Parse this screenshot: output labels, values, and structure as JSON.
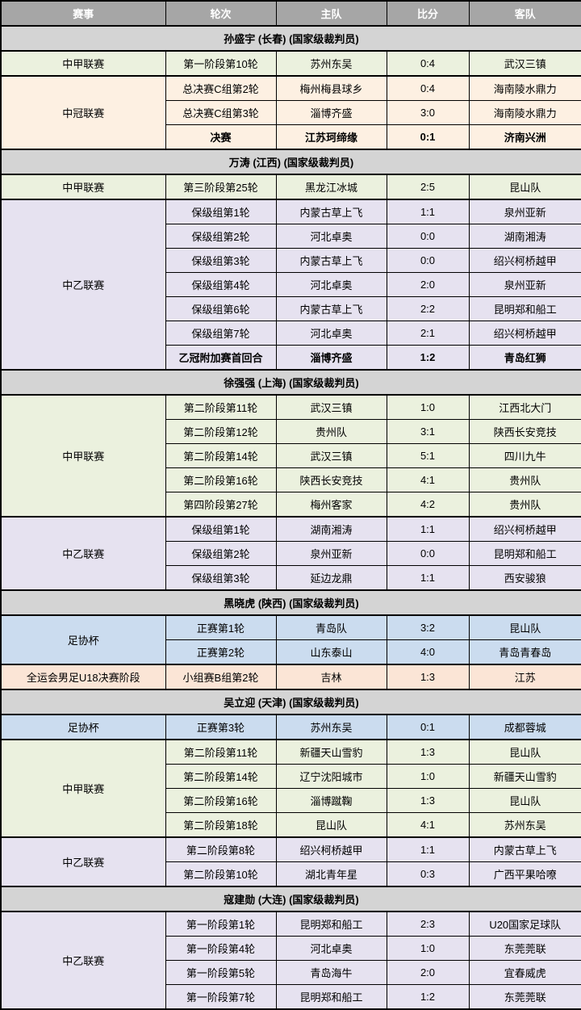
{
  "columns": [
    "赛事",
    "轮次",
    "主队",
    "比分",
    "客队"
  ],
  "colors": {
    "header_bg": "#a6a6a6",
    "header_text": "#ffffff",
    "section_bg": "#d4d4d4",
    "border": "#000000",
    "green": "#ebf1de",
    "cream": "#fdf0e2",
    "lavender": "#e6e2f0",
    "blue": "#cbdcef",
    "peach": "#fbe5d6"
  },
  "sections": [
    {
      "referee": "孙盛宇 (长春) (国家级裁判员)",
      "groups": [
        {
          "competition": "中甲联赛",
          "color": "green",
          "matches": [
            {
              "round": "第一阶段第10轮",
              "home": "苏州东吴",
              "score": "0:4",
              "away": "武汉三镇",
              "bold": false
            }
          ]
        },
        {
          "competition": "中冠联赛",
          "color": "cream",
          "matches": [
            {
              "round": "总决赛C组第2轮",
              "home": "梅州梅县球乡",
              "score": "0:4",
              "away": "海南陵水鼎力",
              "bold": false
            },
            {
              "round": "总决赛C组第3轮",
              "home": "淄博齐盛",
              "score": "3:0",
              "away": "海南陵水鼎力",
              "bold": false
            },
            {
              "round": "决赛",
              "home": "江苏珂缔缘",
              "score": "0:1",
              "away": "济南兴洲",
              "bold": true
            }
          ]
        }
      ]
    },
    {
      "referee": "万涛 (江西) (国家级裁判员)",
      "groups": [
        {
          "competition": "中甲联赛",
          "color": "green",
          "matches": [
            {
              "round": "第三阶段第25轮",
              "home": "黑龙江冰城",
              "score": "2:5",
              "away": "昆山队",
              "bold": false
            }
          ]
        },
        {
          "competition": "中乙联赛",
          "color": "lavender",
          "matches": [
            {
              "round": "保级组第1轮",
              "home": "内蒙古草上飞",
              "score": "1:1",
              "away": "泉州亚新",
              "bold": false
            },
            {
              "round": "保级组第2轮",
              "home": "河北卓奥",
              "score": "0:0",
              "away": "湖南湘涛",
              "bold": false
            },
            {
              "round": "保级组第3轮",
              "home": "内蒙古草上飞",
              "score": "0:0",
              "away": "绍兴柯桥越甲",
              "bold": false
            },
            {
              "round": "保级组第4轮",
              "home": "河北卓奥",
              "score": "2:0",
              "away": "泉州亚新",
              "bold": false
            },
            {
              "round": "保级组第6轮",
              "home": "内蒙古草上飞",
              "score": "2:2",
              "away": "昆明郑和船工",
              "bold": false
            },
            {
              "round": "保级组第7轮",
              "home": "河北卓奥",
              "score": "2:1",
              "away": "绍兴柯桥越甲",
              "bold": false
            },
            {
              "round": "乙冠附加赛首回合",
              "home": "淄博齐盛",
              "score": "1:2",
              "away": "青岛红狮",
              "bold": true
            }
          ]
        }
      ]
    },
    {
      "referee": "徐强强 (上海) (国家级裁判员)",
      "groups": [
        {
          "competition": "中甲联赛",
          "color": "green",
          "matches": [
            {
              "round": "第二阶段第11轮",
              "home": "武汉三镇",
              "score": "1:0",
              "away": "江西北大门",
              "bold": false
            },
            {
              "round": "第二阶段第12轮",
              "home": "贵州队",
              "score": "3:1",
              "away": "陕西长安竞技",
              "bold": false
            },
            {
              "round": "第二阶段第14轮",
              "home": "武汉三镇",
              "score": "5:1",
              "away": "四川九牛",
              "bold": false
            },
            {
              "round": "第二阶段第16轮",
              "home": "陕西长安竞技",
              "score": "4:1",
              "away": "贵州队",
              "bold": false
            },
            {
              "round": "第四阶段第27轮",
              "home": "梅州客家",
              "score": "4:2",
              "away": "贵州队",
              "bold": false
            }
          ]
        },
        {
          "competition": "中乙联赛",
          "color": "lavender",
          "matches": [
            {
              "round": "保级组第1轮",
              "home": "湖南湘涛",
              "score": "1:1",
              "away": "绍兴柯桥越甲",
              "bold": false
            },
            {
              "round": "保级组第2轮",
              "home": "泉州亚新",
              "score": "0:0",
              "away": "昆明郑和船工",
              "bold": false
            },
            {
              "round": "保级组第3轮",
              "home": "延边龙鼎",
              "score": "1:1",
              "away": "西安骏狼",
              "bold": false
            }
          ]
        }
      ]
    },
    {
      "referee": "黑晓虎 (陕西) (国家级裁判员)",
      "groups": [
        {
          "competition": "足协杯",
          "color": "blue",
          "matches": [
            {
              "round": "正赛第1轮",
              "home": "青岛队",
              "score": "3:2",
              "away": "昆山队",
              "bold": false
            },
            {
              "round": "正赛第2轮",
              "home": "山东泰山",
              "score": "4:0",
              "away": "青岛青春岛",
              "bold": false
            }
          ]
        },
        {
          "competition": "全运会男足U18决赛阶段",
          "color": "peach",
          "matches": [
            {
              "round": "小组赛B组第2轮",
              "home": "吉林",
              "score": "1:3",
              "away": "江苏",
              "bold": false
            }
          ]
        }
      ]
    },
    {
      "referee": "吴立迎 (天津) (国家级裁判员)",
      "groups": [
        {
          "competition": "足协杯",
          "color": "blue",
          "matches": [
            {
              "round": "正赛第3轮",
              "home": "苏州东吴",
              "score": "0:1",
              "away": "成都蓉城",
              "bold": false
            }
          ]
        },
        {
          "competition": "中甲联赛",
          "color": "green",
          "matches": [
            {
              "round": "第二阶段第11轮",
              "home": "新疆天山雪豹",
              "score": "1:3",
              "away": "昆山队",
              "bold": false
            },
            {
              "round": "第二阶段第14轮",
              "home": "辽宁沈阳城市",
              "score": "1:0",
              "away": "新疆天山雪豹",
              "bold": false
            },
            {
              "round": "第二阶段第16轮",
              "home": "淄博蹴鞠",
              "score": "1:3",
              "away": "昆山队",
              "bold": false
            },
            {
              "round": "第二阶段第18轮",
              "home": "昆山队",
              "score": "4:1",
              "away": "苏州东吴",
              "bold": false
            }
          ]
        },
        {
          "competition": "中乙联赛",
          "color": "lavender",
          "matches": [
            {
              "round": "第二阶段第8轮",
              "home": "绍兴柯桥越甲",
              "score": "1:1",
              "away": "内蒙古草上飞",
              "bold": false
            },
            {
              "round": "第二阶段第10轮",
              "home": "湖北青年星",
              "score": "0:3",
              "away": "广西平果哈嘹",
              "bold": false
            }
          ]
        }
      ]
    },
    {
      "referee": "寇建勋 (大连) (国家级裁判员)",
      "groups": [
        {
          "competition": "中乙联赛",
          "color": "lavender",
          "matches": [
            {
              "round": "第一阶段第1轮",
              "home": "昆明郑和船工",
              "score": "2:3",
              "away": "U20国家足球队",
              "bold": false
            },
            {
              "round": "第一阶段第4轮",
              "home": "河北卓奥",
              "score": "1:0",
              "away": "东莞莞联",
              "bold": false
            },
            {
              "round": "第一阶段第5轮",
              "home": "青岛海牛",
              "score": "2:0",
              "away": "宜春威虎",
              "bold": false
            },
            {
              "round": "第一阶段第7轮",
              "home": "昆明郑和船工",
              "score": "1:2",
              "away": "东莞莞联",
              "bold": false
            }
          ]
        }
      ]
    }
  ]
}
